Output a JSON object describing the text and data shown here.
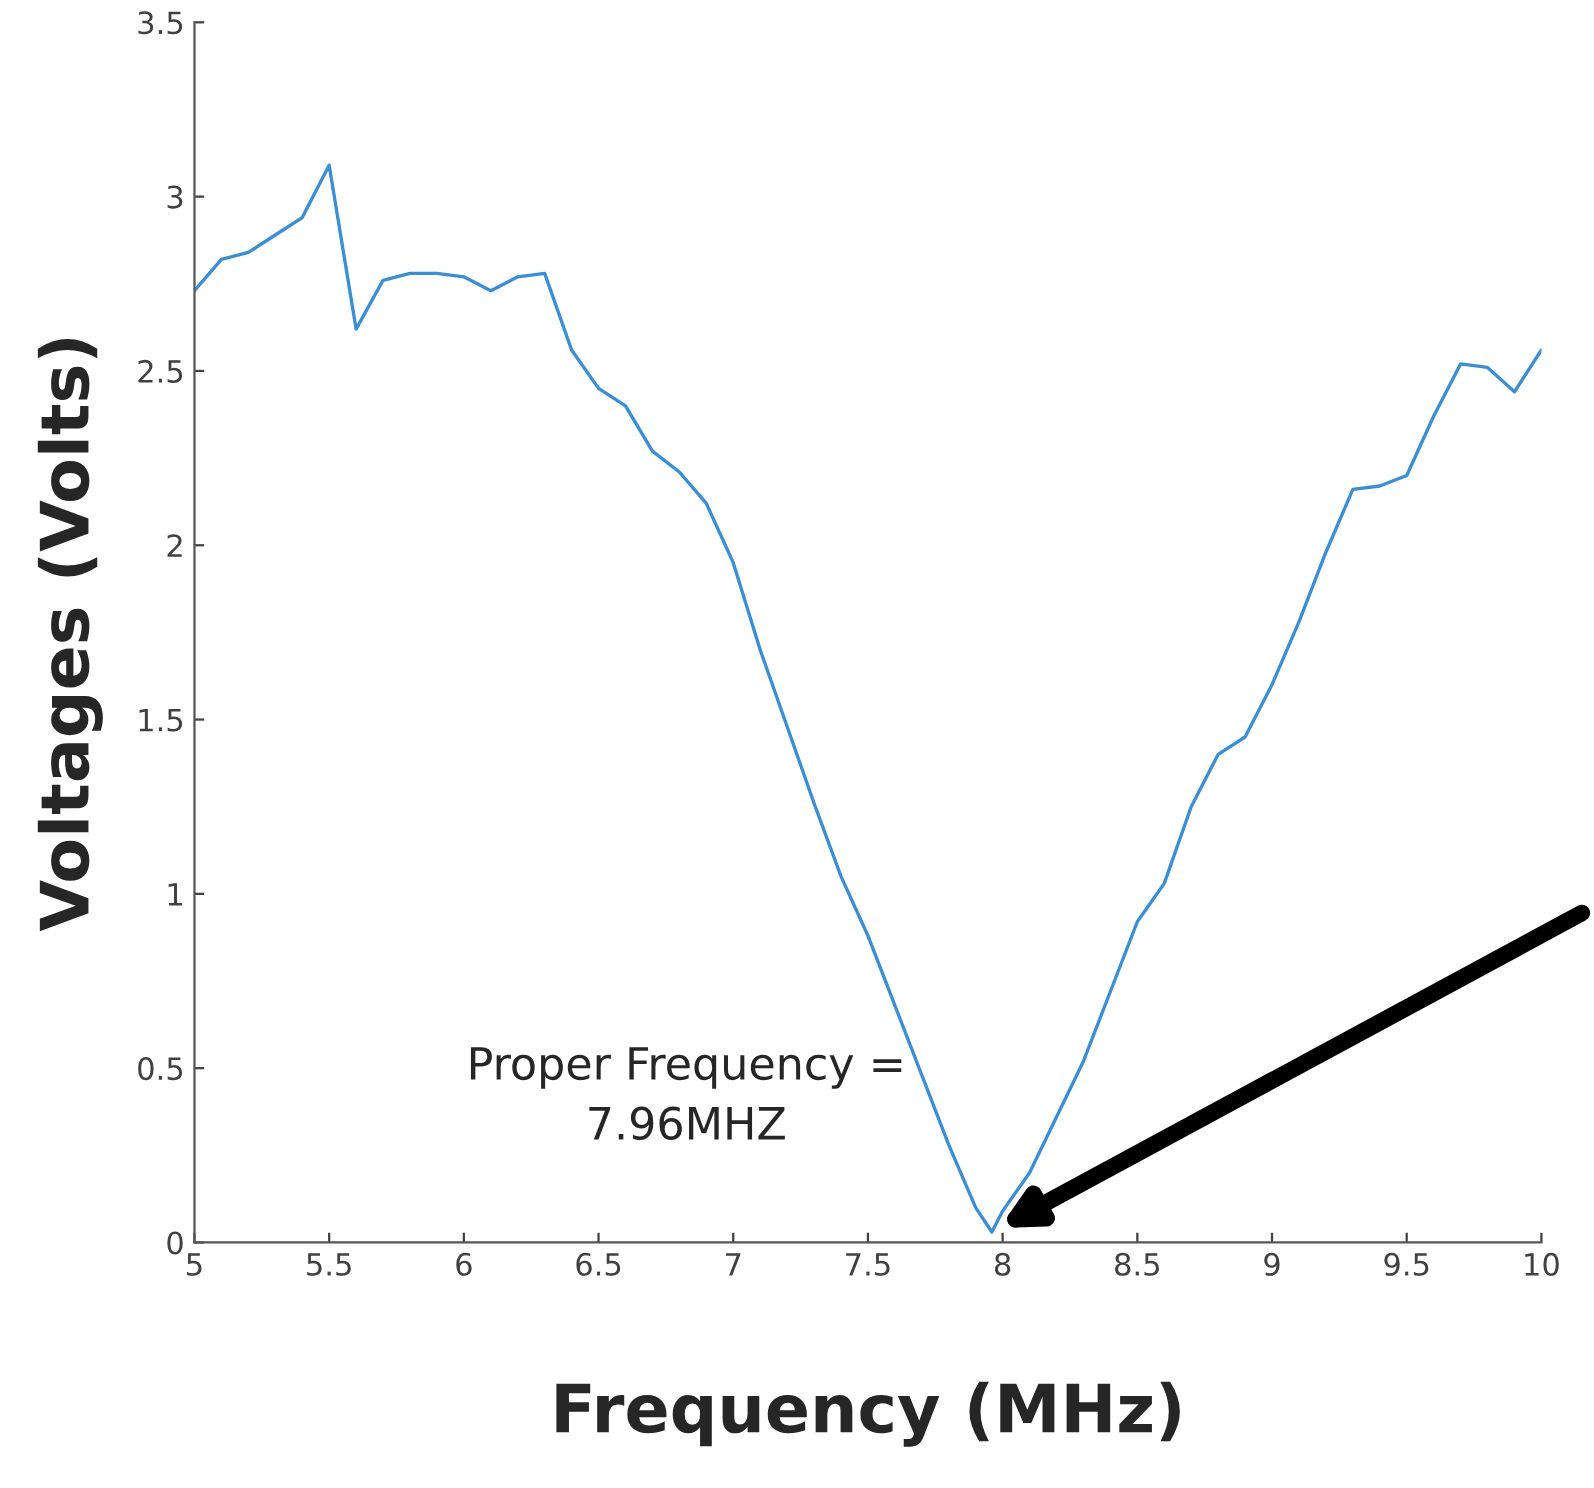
{
  "chart_data": {
    "type": "line",
    "xlabel": "Frequency (MHz)",
    "ylabel": "Voltages (Volts)",
    "x": [
      5.0,
      5.1,
      5.2,
      5.3,
      5.4,
      5.5,
      5.6,
      5.7,
      5.8,
      5.9,
      6.0,
      6.1,
      6.2,
      6.3,
      6.4,
      6.5,
      6.6,
      6.7,
      6.8,
      6.9,
      7.0,
      7.1,
      7.2,
      7.3,
      7.4,
      7.5,
      7.6,
      7.7,
      7.8,
      7.9,
      7.96,
      8.0,
      8.1,
      8.2,
      8.3,
      8.4,
      8.5,
      8.6,
      8.7,
      8.8,
      8.9,
      9.0,
      9.1,
      9.2,
      9.3,
      9.4,
      9.5,
      9.6,
      9.7,
      9.8,
      9.9,
      10.0
    ],
    "series": [
      {
        "color": "#3a8fd4",
        "values": [
          2.73,
          2.82,
          2.84,
          2.89,
          2.94,
          3.09,
          2.62,
          2.76,
          2.78,
          2.78,
          2.77,
          2.73,
          2.77,
          2.78,
          2.56,
          2.45,
          2.4,
          2.27,
          2.21,
          2.12,
          1.95,
          1.7,
          1.48,
          1.26,
          1.05,
          0.88,
          0.68,
          0.48,
          0.28,
          0.1,
          0.03,
          0.09,
          0.2,
          0.36,
          0.52,
          0.72,
          0.92,
          1.03,
          1.25,
          1.4,
          1.45,
          1.6,
          1.78,
          1.98,
          2.16,
          2.17,
          2.2,
          2.37,
          2.52,
          2.51,
          2.44,
          2.56
        ]
      }
    ],
    "xlim": [
      5,
      10
    ],
    "xticks": [
      5,
      5.5,
      6,
      6.5,
      7,
      7.5,
      8,
      8.5,
      9,
      9.5,
      10
    ],
    "ylim": [
      0,
      3.5
    ],
    "yticks": [
      0,
      0.5,
      1,
      1.5,
      2,
      2.5,
      3,
      3.5
    ],
    "annotations": [
      {
        "text": "Proper Frequency =\n7.96MHZ",
        "x": 7.96,
        "y": 0.03
      }
    ],
    "grid": false,
    "legend": false,
    "marker": "none",
    "line_style": "solid"
  }
}
